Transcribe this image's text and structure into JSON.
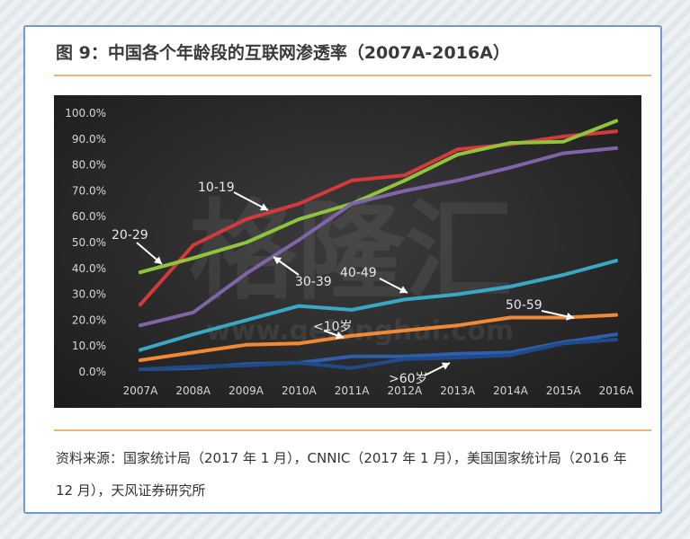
{
  "figure": {
    "title": "图 9：中国各个年龄段的互联网渗透率（2007A-2016A）",
    "source": "资料来源：国家统计局（2017 年 1 月），CNNIC（2017 年 1 月），美国国家统计局（2016 年 12 月），天风证券研究所"
  },
  "chart_data": {
    "type": "line",
    "categories": [
      "2007A",
      "2008A",
      "2009A",
      "2010A",
      "2011A",
      "2012A",
      "2013A",
      "2014A",
      "2015A",
      "2016A"
    ],
    "ylim": [
      0,
      100
    ],
    "yticks": [
      "0.0%",
      "10.0%",
      "20.0%",
      "30.0%",
      "40.0%",
      "50.0%",
      "60.0%",
      "70.0%",
      "80.0%",
      "90.0%",
      "100.0%"
    ],
    "grid": false,
    "series": [
      {
        "name": "10-19",
        "color": "#d43a3a",
        "values": [
          26,
          49,
          59,
          65,
          74,
          76,
          86,
          88,
          91,
          93
        ]
      },
      {
        "name": "20-29",
        "color": "#8fc43c",
        "values": [
          38.5,
          44,
          50,
          59,
          65,
          74,
          84,
          88.5,
          89,
          97
        ]
      },
      {
        "name": "30-39",
        "color": "#8064a8",
        "values": [
          18,
          23,
          38,
          51,
          65,
          70,
          74,
          79,
          84.5,
          86.5
        ]
      },
      {
        "name": "40-49",
        "color": "#3aa8c4",
        "values": [
          8.5,
          14.5,
          20,
          25.5,
          24,
          28,
          30,
          33,
          37.5,
          43
        ]
      },
      {
        "name": "50-59",
        "color": "#f08a36",
        "values": [
          4.5,
          7.5,
          10.5,
          11,
          14,
          16,
          18,
          21,
          21,
          22
        ]
      },
      {
        "name": "<10岁",
        "color": "#2f5fa8",
        "values": [
          1,
          1.5,
          3,
          3.5,
          6,
          6,
          7,
          7.5,
          11.5,
          14.5
        ]
      },
      {
        "name": ">60岁",
        "color": "#1f4b8a",
        "values": [
          1,
          2,
          2.5,
          3.5,
          1.5,
          5,
          5.5,
          6.5,
          11,
          12.5
        ]
      }
    ],
    "annotations": [
      "10-19",
      "20-29",
      "30-39",
      "40-49",
      "50-59",
      "<10岁",
      ">60岁"
    ],
    "watermark": [
      "格隆汇",
      "www.gelonghui.com"
    ]
  }
}
